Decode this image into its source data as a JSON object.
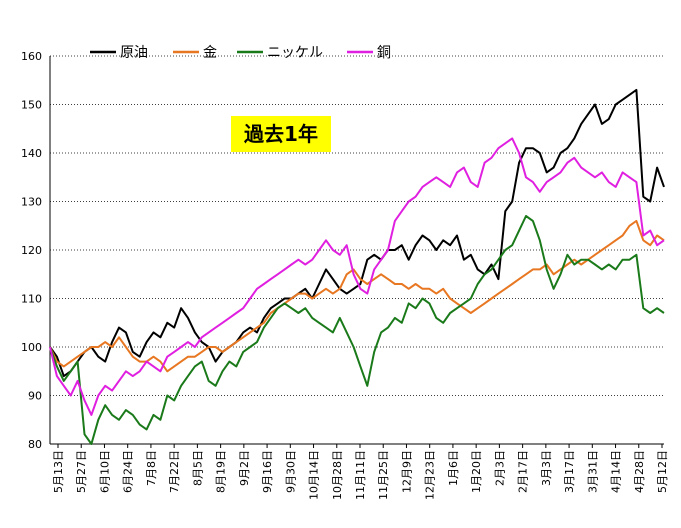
{
  "chart_data": {
    "type": "line",
    "title": "",
    "xlabel": "",
    "ylabel": "",
    "ylim": [
      80,
      160
    ],
    "yticks": [
      80,
      90,
      100,
      110,
      120,
      130,
      140,
      150,
      160
    ],
    "grid": "horizontal-dotted",
    "legend_position": "top",
    "annotation": "過去1年",
    "annotation_bg": "#ffff00",
    "x_tick_labels": [
      "5月13日",
      "5月27日",
      "6月10日",
      "6月24日",
      "7月8日",
      "7月22日",
      "8月5日",
      "8月19日",
      "9月2日",
      "9月16日",
      "9月30日",
      "10月14日",
      "10月28日",
      "11月11日",
      "11月25日",
      "12月9日",
      "12月23日",
      "1月6日",
      "1月20日",
      "2月3日",
      "2月17日",
      "3月3日",
      "3月17日",
      "3月31日",
      "4月14日",
      "4月28日",
      "5月12日"
    ],
    "series": [
      {
        "name": "原油",
        "color": "#000000",
        "values": [
          100,
          98,
          94,
          95,
          97,
          99,
          100,
          98,
          97,
          101,
          104,
          103,
          99,
          98,
          101,
          103,
          102,
          105,
          104,
          108,
          106,
          103,
          101,
          100,
          97,
          99,
          100,
          101,
          103,
          104,
          103,
          106,
          108,
          109,
          110,
          110,
          111,
          112,
          110,
          113,
          116,
          114,
          112,
          111,
          112,
          113,
          118,
          119,
          118,
          120,
          120,
          121,
          118,
          121,
          123,
          122,
          120,
          122,
          121,
          123,
          118,
          119,
          116,
          115,
          117,
          114,
          128,
          130,
          138,
          141,
          141,
          140,
          136,
          137,
          140,
          141,
          143,
          146,
          148,
          150,
          146,
          147,
          150,
          151,
          152,
          153,
          131,
          130,
          137,
          133
        ]
      },
      {
        "name": "金",
        "color": "#e87722",
        "values": [
          100,
          97,
          96,
          97,
          98,
          99,
          100,
          100,
          101,
          100,
          102,
          100,
          98,
          97,
          97,
          98,
          97,
          95,
          96,
          97,
          98,
          98,
          99,
          100,
          100,
          99,
          100,
          101,
          102,
          103,
          104,
          105,
          107,
          108,
          109,
          110,
          111,
          111,
          110,
          111,
          112,
          111,
          112,
          115,
          116,
          114,
          113,
          114,
          115,
          114,
          113,
          113,
          112,
          113,
          112,
          112,
          111,
          112,
          110,
          109,
          108,
          107,
          108,
          109,
          110,
          111,
          112,
          113,
          114,
          115,
          116,
          116,
          117,
          115,
          116,
          117,
          118,
          117,
          118,
          119,
          120,
          121,
          122,
          123,
          125,
          126,
          122,
          121,
          123,
          122
        ]
      },
      {
        "name": "ニッケル",
        "color": "#1a7a1a",
        "values": [
          100,
          96,
          93,
          95,
          97,
          82,
          80,
          85,
          88,
          86,
          85,
          87,
          86,
          84,
          83,
          86,
          85,
          90,
          89,
          92,
          94,
          96,
          97,
          93,
          92,
          95,
          97,
          96,
          99,
          100,
          101,
          104,
          106,
          108,
          109,
          108,
          107,
          108,
          106,
          105,
          104,
          103,
          106,
          103,
          100,
          96,
          92,
          99,
          103,
          104,
          106,
          105,
          109,
          108,
          110,
          109,
          106,
          105,
          107,
          108,
          109,
          110,
          113,
          115,
          116,
          118,
          120,
          121,
          124,
          127,
          126,
          122,
          116,
          112,
          115,
          119,
          117,
          118,
          118,
          117,
          116,
          117,
          116,
          118,
          118,
          119,
          108,
          107,
          108,
          107
        ]
      },
      {
        "name": "銅",
        "color": "#e020e0",
        "values": [
          100,
          94,
          92,
          90,
          93,
          89,
          86,
          90,
          92,
          91,
          93,
          95,
          94,
          95,
          97,
          96,
          95,
          98,
          99,
          100,
          101,
          100,
          102,
          103,
          104,
          105,
          106,
          107,
          108,
          110,
          112,
          113,
          114,
          115,
          116,
          117,
          118,
          117,
          118,
          120,
          122,
          120,
          119,
          121,
          115,
          112,
          111,
          116,
          118,
          120,
          126,
          128,
          130,
          131,
          133,
          134,
          135,
          134,
          133,
          136,
          137,
          134,
          133,
          138,
          139,
          141,
          142,
          143,
          140,
          135,
          134,
          132,
          134,
          135,
          136,
          138,
          139,
          137,
          136,
          135,
          136,
          134,
          133,
          136,
          135,
          134,
          123,
          124,
          121,
          122
        ]
      }
    ]
  }
}
